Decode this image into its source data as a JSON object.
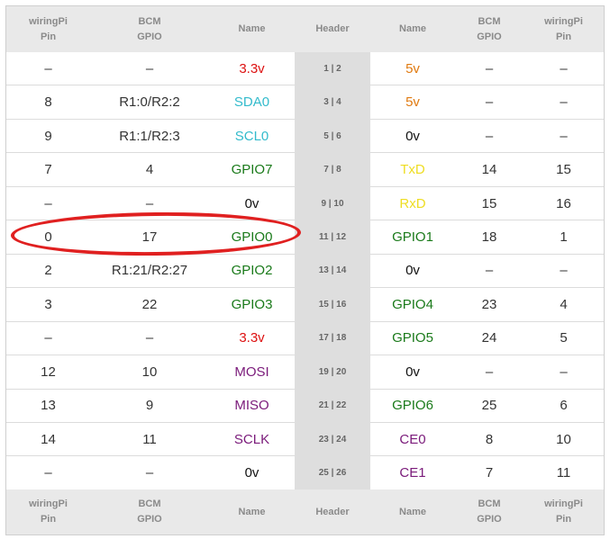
{
  "colors": {
    "power_3v3": "#dd1111",
    "power_5v": "#e07a10",
    "i2c": "#33bbcc",
    "gpio": "#1a7a1a",
    "uart": "#eedd22",
    "spi": "#7a1a7a",
    "ground": "#111111",
    "highlight": "#e02020"
  },
  "header": [
    "wiringPi\nPin",
    "BCM\nGPIO",
    "Name",
    "Header",
    "Name",
    "BCM\nGPIO",
    "wiringPi\nPin"
  ],
  "rows": [
    {
      "lwp": "–",
      "lbcm": "–",
      "lname": "3.3v",
      "lcolor": "power_3v3",
      "hdr": "1 | 2",
      "rname": "5v",
      "rcolor": "power_5v",
      "rbcm": "–",
      "rwp": "–"
    },
    {
      "lwp": "8",
      "lbcm": "R1:0/R2:2",
      "lname": "SDA0",
      "lcolor": "i2c",
      "hdr": "3 | 4",
      "rname": "5v",
      "rcolor": "power_5v",
      "rbcm": "–",
      "rwp": "–"
    },
    {
      "lwp": "9",
      "lbcm": "R1:1/R2:3",
      "lname": "SCL0",
      "lcolor": "i2c",
      "hdr": "5 | 6",
      "rname": "0v",
      "rcolor": "ground",
      "rbcm": "–",
      "rwp": "–"
    },
    {
      "lwp": "7",
      "lbcm": "4",
      "lname": "GPIO7",
      "lcolor": "gpio",
      "hdr": "7 | 8",
      "rname": "TxD",
      "rcolor": "uart",
      "rbcm": "14",
      "rwp": "15"
    },
    {
      "lwp": "–",
      "lbcm": "–",
      "lname": "0v",
      "lcolor": "ground",
      "hdr": "9 | 10",
      "rname": "RxD",
      "rcolor": "uart",
      "rbcm": "15",
      "rwp": "16"
    },
    {
      "lwp": "0",
      "lbcm": "17",
      "lname": "GPIO0",
      "lcolor": "gpio",
      "hdr": "11 | 12",
      "rname": "GPIO1",
      "rcolor": "gpio",
      "rbcm": "18",
      "rwp": "1"
    },
    {
      "lwp": "2",
      "lbcm": "R1:21/R2:27",
      "lname": "GPIO2",
      "lcolor": "gpio",
      "hdr": "13 | 14",
      "rname": "0v",
      "rcolor": "ground",
      "rbcm": "–",
      "rwp": "–"
    },
    {
      "lwp": "3",
      "lbcm": "22",
      "lname": "GPIO3",
      "lcolor": "gpio",
      "hdr": "15 | 16",
      "rname": "GPIO4",
      "rcolor": "gpio",
      "rbcm": "23",
      "rwp": "4"
    },
    {
      "lwp": "–",
      "lbcm": "–",
      "lname": "3.3v",
      "lcolor": "power_3v3",
      "hdr": "17 | 18",
      "rname": "GPIO5",
      "rcolor": "gpio",
      "rbcm": "24",
      "rwp": "5"
    },
    {
      "lwp": "12",
      "lbcm": "10",
      "lname": "MOSI",
      "lcolor": "spi",
      "hdr": "19 | 20",
      "rname": "0v",
      "rcolor": "ground",
      "rbcm": "–",
      "rwp": "–"
    },
    {
      "lwp": "13",
      "lbcm": "9",
      "lname": "MISO",
      "lcolor": "spi",
      "hdr": "21 | 22",
      "rname": "GPIO6",
      "rcolor": "gpio",
      "rbcm": "25",
      "rwp": "6"
    },
    {
      "lwp": "14",
      "lbcm": "11",
      "lname": "SCLK",
      "lcolor": "spi",
      "hdr": "23 | 24",
      "rname": "CE0",
      "rcolor": "spi",
      "rbcm": "8",
      "rwp": "10"
    },
    {
      "lwp": "–",
      "lbcm": "–",
      "lname": "0v",
      "lcolor": "ground",
      "hdr": "25 | 26",
      "rname": "CE1",
      "rcolor": "spi",
      "rbcm": "7",
      "rwp": "11"
    }
  ],
  "footer": [
    "wiringPi\nPin",
    "BCM\nGPIO",
    "Name",
    "Header",
    "Name",
    "BCM\nGPIO",
    "wiringPi\nPin"
  ]
}
